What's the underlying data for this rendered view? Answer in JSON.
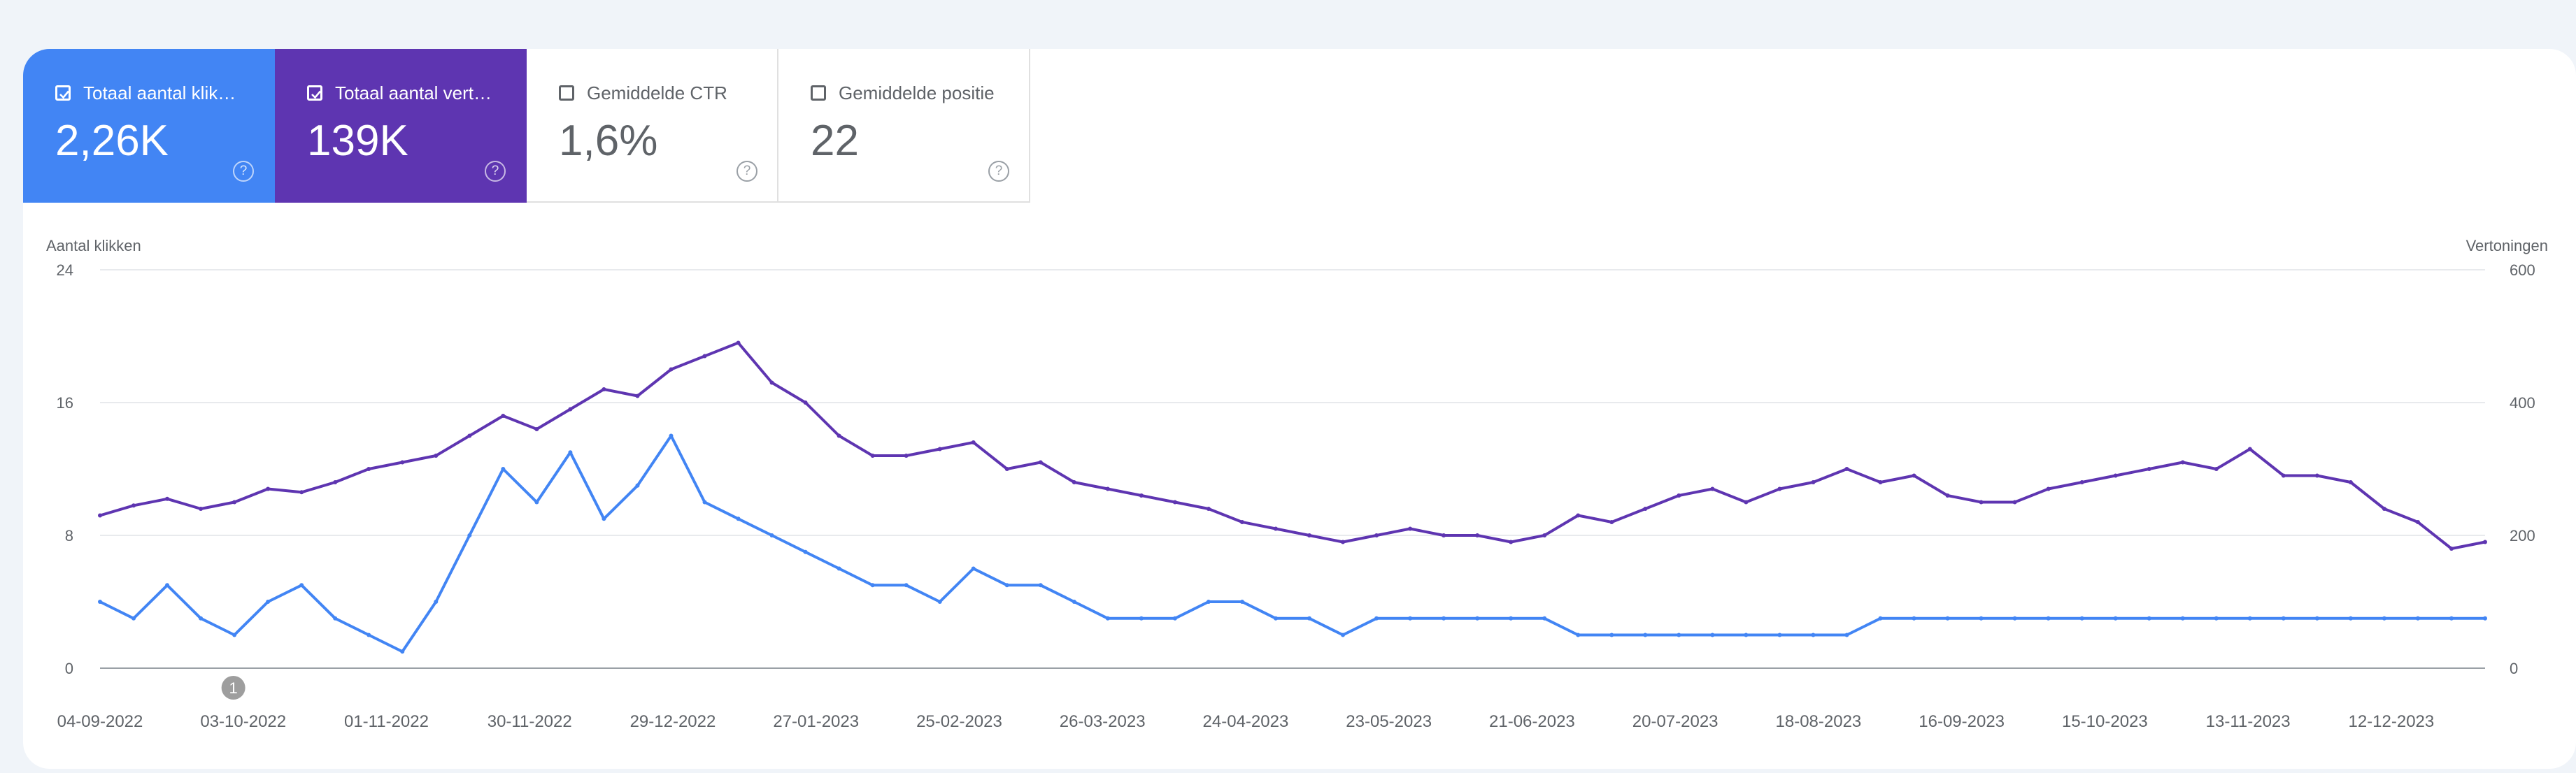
{
  "metrics": [
    {
      "label": "Totaal aantal klik…",
      "value": "2,26K",
      "checked": true,
      "color": "#4285f4"
    },
    {
      "label": "Totaal aantal vert…",
      "value": "139K",
      "checked": true,
      "color": "#5e35b1"
    },
    {
      "label": "Gemiddelde CTR",
      "value": "1,6%",
      "checked": false
    },
    {
      "label": "Gemiddelde positie",
      "value": "22",
      "checked": false
    }
  ],
  "help_glyph": "?",
  "annotation_label": "1",
  "chart_data": {
    "type": "line",
    "ylabel_left": "Aantal klikken",
    "ylabel_right": "Vertoningen",
    "yticks_left": [
      "24",
      "16",
      "8",
      "0"
    ],
    "yticks_right": [
      "600",
      "400",
      "200",
      "0"
    ],
    "ylim_left": [
      0,
      24
    ],
    "ylim_right": [
      0,
      600
    ],
    "x_start": "04-09-2022",
    "x_end": "31-12-2023",
    "xtick_labels": [
      "04-09-2022",
      "03-10-2022",
      "01-11-2022",
      "30-11-2022",
      "29-12-2022",
      "27-01-2023",
      "25-02-2023",
      "26-03-2023",
      "24-04-2023",
      "23-05-2023",
      "21-06-2023",
      "20-07-2023",
      "18-08-2023",
      "16-09-2023",
      "15-10-2023",
      "13-11-2023",
      "12-12-2023"
    ],
    "grid": true,
    "series": [
      {
        "name": "Totaal aantal klikken",
        "axis": "left",
        "color": "#4285f4",
        "period": "weekly",
        "values": [
          4,
          3,
          5,
          3,
          2,
          4,
          5,
          3,
          2,
          1,
          4,
          8,
          12,
          10,
          13,
          9,
          11,
          14,
          10,
          9,
          8,
          7,
          6,
          5,
          5,
          4,
          6,
          5,
          5,
          4,
          3,
          3,
          3,
          4,
          4,
          3,
          3,
          2,
          3,
          3,
          3,
          3,
          3,
          3,
          2,
          2,
          2,
          2,
          2,
          2,
          2,
          2,
          2,
          3,
          3,
          3,
          3,
          3,
          3,
          3,
          3,
          3,
          3,
          3,
          3,
          3,
          3,
          3,
          3,
          3,
          3,
          3
        ]
      },
      {
        "name": "Totaal aantal vertoningen",
        "axis": "right",
        "color": "#5e35b1",
        "period": "weekly",
        "values": [
          230,
          245,
          255,
          240,
          250,
          270,
          265,
          280,
          300,
          310,
          320,
          350,
          380,
          360,
          390,
          420,
          410,
          450,
          470,
          490,
          430,
          400,
          350,
          320,
          320,
          330,
          340,
          300,
          310,
          280,
          270,
          260,
          250,
          240,
          220,
          210,
          200,
          190,
          200,
          210,
          200,
          200,
          190,
          200,
          230,
          220,
          240,
          260,
          270,
          250,
          270,
          280,
          300,
          280,
          290,
          260,
          250,
          250,
          270,
          280,
          290,
          300,
          310,
          300,
          330,
          290,
          290,
          280,
          240,
          220,
          180,
          190
        ]
      }
    ],
    "annotation_date": "01-10-2022"
  }
}
